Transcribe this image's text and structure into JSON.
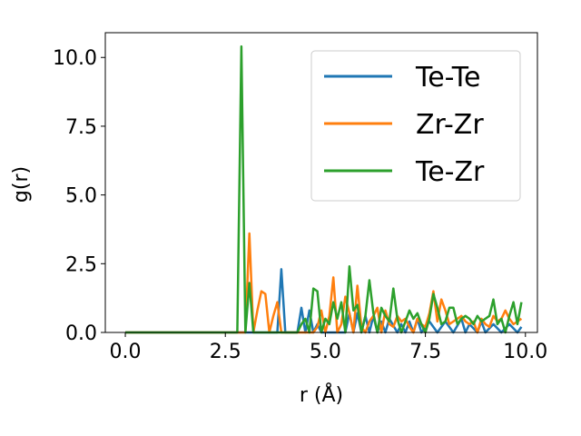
{
  "chart_data": {
    "type": "line",
    "title": "",
    "xlabel": "r (Å)",
    "ylabel": "g(r)",
    "xlim": [
      -0.5,
      10.3
    ],
    "ylim": [
      0,
      10.9
    ],
    "xticks": [
      0.0,
      2.5,
      5.0,
      7.5,
      10.0
    ],
    "xtick_labels": [
      "0.0",
      "2.5",
      "5.0",
      "7.5",
      "10.0"
    ],
    "yticks": [
      0.0,
      2.5,
      5.0,
      7.5,
      10.0
    ],
    "ytick_labels": [
      "0.0",
      "2.5",
      "5.0",
      "7.5",
      "10.0"
    ],
    "grid": false,
    "legend_position": "top-right",
    "series": [
      {
        "name": "Te-Te",
        "color": "#1f77b4",
        "x": [
          0.0,
          2.8,
          3.8,
          3.9,
          4.0,
          4.3,
          4.4,
          4.5,
          4.6,
          4.7,
          4.8,
          4.9,
          5.0,
          5.5,
          5.6,
          5.7,
          5.8,
          5.9,
          6.0,
          6.1,
          6.2,
          6.3,
          6.4,
          6.5,
          6.6,
          6.8,
          6.9,
          7.0,
          7.1,
          7.2,
          7.3,
          7.4,
          7.6,
          7.8,
          8.0,
          8.2,
          8.4,
          8.5,
          8.6,
          8.8,
          8.9,
          9.0,
          9.2,
          9.4,
          9.6,
          9.8,
          9.9
        ],
        "values": [
          0,
          0,
          0,
          2.3,
          0,
          0,
          0.9,
          0,
          0.8,
          0,
          0.3,
          0,
          0,
          0,
          0.7,
          0,
          0.7,
          0,
          0.6,
          0,
          0.6,
          0,
          0.4,
          0,
          0.5,
          0,
          0.3,
          0,
          0.4,
          0,
          0.5,
          0,
          0.4,
          0,
          0.4,
          0,
          0.5,
          0,
          0.3,
          0,
          0.4,
          0,
          0.3,
          0,
          0.3,
          0,
          0.2
        ]
      },
      {
        "name": "Zr-Zr",
        "color": "#ff7f0e",
        "x": [
          0.0,
          2.8,
          3.0,
          3.1,
          3.2,
          3.3,
          3.4,
          3.5,
          3.6,
          3.7,
          3.8,
          3.9,
          4.0,
          4.7,
          4.8,
          4.9,
          5.0,
          5.1,
          5.2,
          5.3,
          5.4,
          5.5,
          5.6,
          5.7,
          5.8,
          5.9,
          6.0,
          6.1,
          6.2,
          6.3,
          6.4,
          6.5,
          6.6,
          6.7,
          6.8,
          6.9,
          7.0,
          7.1,
          7.2,
          7.3,
          7.4,
          7.5,
          7.6,
          7.7,
          7.8,
          7.9,
          8.0,
          8.1,
          8.2,
          8.3,
          8.4,
          8.5,
          8.6,
          8.7,
          8.8,
          8.9,
          9.0,
          9.1,
          9.2,
          9.3,
          9.4,
          9.5,
          9.6,
          9.7,
          9.8,
          9.9
        ],
        "values": [
          0,
          0,
          0,
          3.6,
          0,
          0.8,
          1.5,
          1.4,
          0,
          0.6,
          1.1,
          0,
          0,
          0,
          0.2,
          0.8,
          0,
          0.6,
          2.0,
          0,
          0.3,
          1.3,
          0.7,
          0,
          1.7,
          0.2,
          0,
          0.4,
          0.6,
          0.9,
          0,
          0.8,
          0.3,
          0.2,
          0.6,
          0.4,
          0.5,
          0.2,
          0,
          0.5,
          0.3,
          0.2,
          0.7,
          1.5,
          0.4,
          1.2,
          0.8,
          0.3,
          0.4,
          0.5,
          0.6,
          0.4,
          0.3,
          0.4,
          0,
          0.5,
          0.3,
          0.2,
          0.6,
          0.4,
          0.5,
          0.8,
          0.5,
          0.3,
          0.4,
          0.5
        ]
      },
      {
        "name": "Te-Zr",
        "color": "#2ca02c",
        "x": [
          0.0,
          2.8,
          2.9,
          3.0,
          3.1,
          3.2,
          3.3,
          3.4,
          4.3,
          4.4,
          4.5,
          4.6,
          4.7,
          4.8,
          4.9,
          5.0,
          5.1,
          5.2,
          5.3,
          5.4,
          5.5,
          5.6,
          5.7,
          5.8,
          5.9,
          6.0,
          6.1,
          6.2,
          6.3,
          6.4,
          6.5,
          6.6,
          6.7,
          6.8,
          6.9,
          7.0,
          7.1,
          7.2,
          7.3,
          7.4,
          7.5,
          7.6,
          7.7,
          7.8,
          7.9,
          8.0,
          8.1,
          8.2,
          8.3,
          8.4,
          8.5,
          8.6,
          8.7,
          8.8,
          8.9,
          9.0,
          9.1,
          9.2,
          9.3,
          9.4,
          9.5,
          9.6,
          9.7,
          9.8,
          9.9
        ],
        "values": [
          0,
          0,
          10.4,
          0,
          1.8,
          0,
          0,
          0,
          0,
          0.3,
          0.5,
          0,
          1.6,
          1.5,
          0,
          0.5,
          0.3,
          1.1,
          0.5,
          1.1,
          0,
          2.4,
          0.8,
          1.0,
          0,
          0.6,
          1.9,
          0.7,
          0,
          0.9,
          0.6,
          0.4,
          1.6,
          0.5,
          0,
          0.4,
          0.8,
          0.5,
          0.7,
          0.3,
          0,
          0.5,
          1.4,
          0.9,
          0.3,
          0.4,
          0.9,
          0.9,
          0.3,
          0.5,
          0.6,
          0.5,
          0.3,
          0.6,
          0.4,
          0.5,
          0.6,
          1.2,
          0.3,
          0.5,
          0,
          0.6,
          1.1,
          0.3,
          1.1
        ]
      }
    ]
  }
}
